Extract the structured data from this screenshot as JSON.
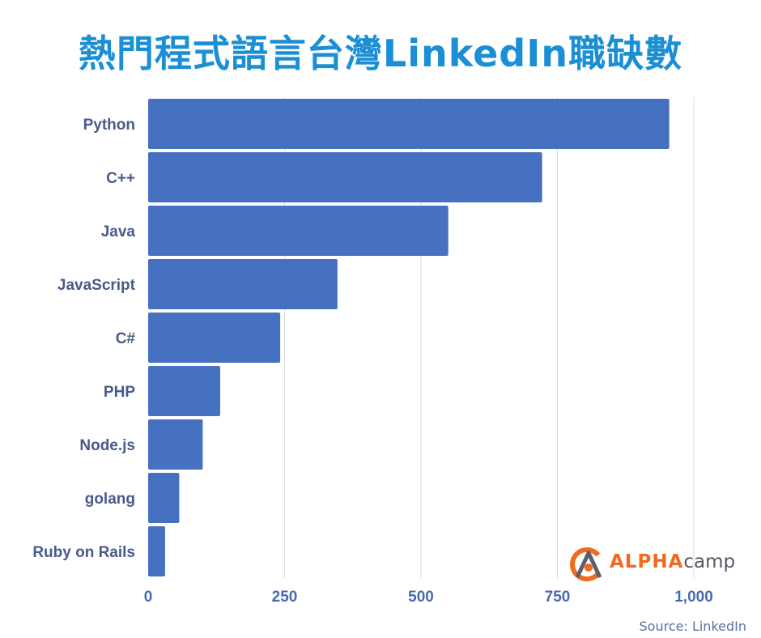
{
  "title": "熱門程式語言台灣LinkedIn職缺數",
  "source": "Source: LinkedIn",
  "logo": {
    "brand_part1": "ALPHA",
    "brand_part2": "camp"
  },
  "colors": {
    "bar": "#4670c0",
    "title": "#1a8fd6",
    "grid": "#d9dbe6",
    "logo_orange": "#f06a1f",
    "logo_gray": "#555a64"
  },
  "chart_data": {
    "type": "bar",
    "orientation": "horizontal",
    "title": "熱門程式語言台灣LinkedIn職缺數",
    "categories": [
      "Python",
      "C++",
      "Java",
      "JavaScript",
      "C#",
      "PHP",
      "Node.js",
      "golang",
      "Ruby on Rails"
    ],
    "values": [
      955,
      722,
      550,
      347,
      242,
      132,
      100,
      57,
      31
    ],
    "xlim": [
      0,
      1000
    ],
    "ticks": [
      0,
      250,
      500,
      750,
      1000
    ],
    "tick_labels": [
      "0",
      "250",
      "500",
      "750",
      "1,000"
    ],
    "xlabel": "",
    "ylabel": "",
    "grid": true,
    "legend": "none"
  }
}
